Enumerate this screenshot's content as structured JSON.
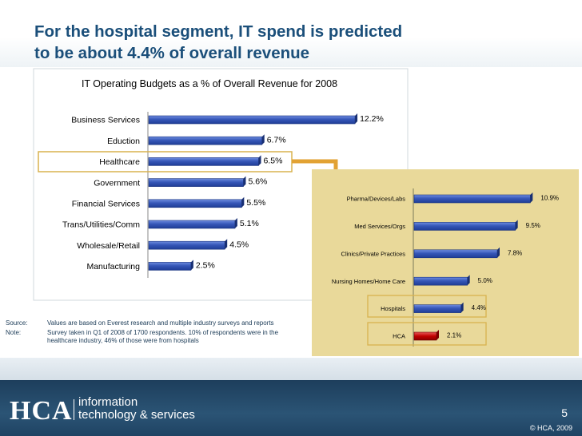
{
  "slide": {
    "title_line1": "For the hospital segment, IT spend is predicted",
    "title_line2": "to be about 4.4% of overall revenue",
    "source_label": "Source:",
    "source_text": "Values are based on Everest research and multiple industry surveys and reports",
    "note_label": "Note:",
    "note_text": "Survey taken in Q1 of 2008 of 1700 respondents. 10% of respondents were in the healthcare industry, 46% of those were from hospitals",
    "page_number": "5",
    "copyright": "© HCA, 2009"
  },
  "logo": {
    "name": "HCA",
    "line1": "information",
    "line2": "technology & services"
  },
  "colors": {
    "title": "#1b4f7a",
    "bar": "#2e4fb0",
    "highlight_bar": "#c00000",
    "highlight_box": "#d9b24f",
    "arrow": "#e2a233",
    "right_panel_bg": "#e9d99a"
  },
  "chart_data": [
    {
      "type": "bar",
      "orientation": "horizontal",
      "title": "IT Operating Budgets as a % of Overall Revenue for 2008",
      "categories": [
        "Business Services",
        "Eduction",
        "Healthcare",
        "Government",
        "Financial Services",
        "Trans/Utilities/Comm",
        "Wholesale/Retail",
        "Manufacturing"
      ],
      "values": [
        12.2,
        6.7,
        6.5,
        5.6,
        5.5,
        5.1,
        4.5,
        2.5
      ],
      "value_labels": [
        "12.2%",
        "6.7%",
        "6.5%",
        "5.6%",
        "5.5%",
        "5.1%",
        "4.5%",
        "2.5%"
      ],
      "highlighted": [
        "Healthcare"
      ],
      "xlim": [
        0,
        13
      ],
      "xlabel": "",
      "ylabel": ""
    },
    {
      "type": "bar",
      "orientation": "horizontal",
      "title": "",
      "categories": [
        "Pharma/Devices/Labs",
        "Med Services/Orgs",
        "Clinics/Private Practices",
        "Nursing Homes/Home Care",
        "Hospitals",
        "HCA"
      ],
      "values": [
        10.9,
        9.5,
        7.8,
        5.0,
        4.4,
        2.1
      ],
      "value_labels": [
        "10.9%",
        "9.5%",
        "7.8%",
        "5.0%",
        "4.4%",
        "2.1%"
      ],
      "highlighted": [
        "Hospitals",
        "HCA"
      ],
      "xlim": [
        0,
        12
      ],
      "xlabel": "",
      "ylabel": ""
    }
  ]
}
